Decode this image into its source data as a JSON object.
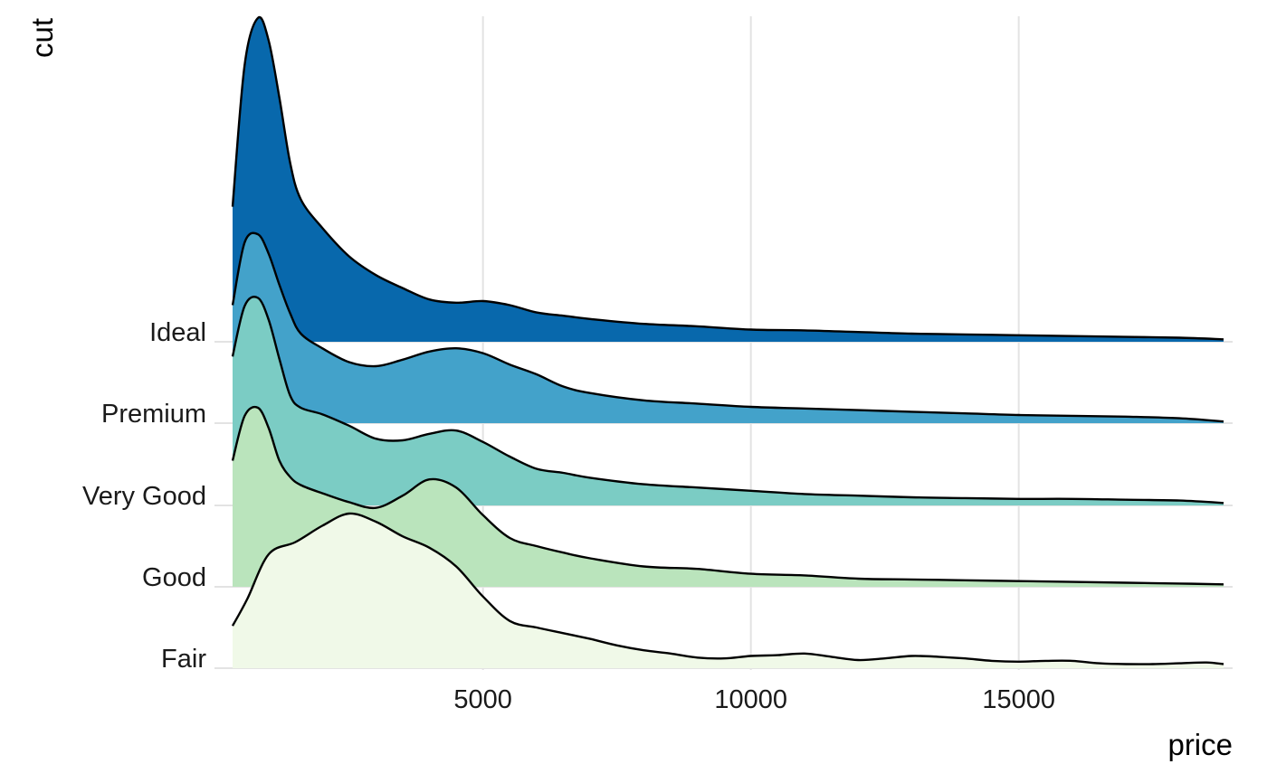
{
  "chart_data": {
    "type": "area",
    "subtype": "ridgeline",
    "xlabel": "price",
    "ylabel": "cut",
    "x_ticks": [
      5000,
      10000,
      15000
    ],
    "xlim": [
      326,
      18823
    ],
    "categories": [
      "Fair",
      "Good",
      "Very Good",
      "Premium",
      "Ideal"
    ],
    "grid": true,
    "series": [
      {
        "name": "Ideal",
        "color": "#0868ac",
        "points": [
          [
            326,
            1.66
          ],
          [
            550,
            3.4
          ],
          [
            800,
            3.98
          ],
          [
            1000,
            3.7
          ],
          [
            1200,
            3.0
          ],
          [
            1400,
            2.2
          ],
          [
            1600,
            1.75
          ],
          [
            2000,
            1.4
          ],
          [
            2500,
            1.05
          ],
          [
            3000,
            0.82
          ],
          [
            3500,
            0.66
          ],
          [
            4000,
            0.52
          ],
          [
            4500,
            0.48
          ],
          [
            5000,
            0.5
          ],
          [
            5500,
            0.45
          ],
          [
            6000,
            0.36
          ],
          [
            6500,
            0.32
          ],
          [
            7000,
            0.28
          ],
          [
            8000,
            0.22
          ],
          [
            9000,
            0.19
          ],
          [
            10000,
            0.15
          ],
          [
            11000,
            0.14
          ],
          [
            12000,
            0.12
          ],
          [
            13000,
            0.1
          ],
          [
            14000,
            0.09
          ],
          [
            15000,
            0.08
          ],
          [
            16000,
            0.07
          ],
          [
            17000,
            0.06
          ],
          [
            18000,
            0.05
          ],
          [
            18823,
            0.03
          ]
        ]
      },
      {
        "name": "Premium",
        "color": "#43a2ca",
        "points": [
          [
            326,
            1.45
          ],
          [
            550,
            2.22
          ],
          [
            800,
            2.32
          ],
          [
            1000,
            2.08
          ],
          [
            1200,
            1.7
          ],
          [
            1400,
            1.35
          ],
          [
            1600,
            1.1
          ],
          [
            2000,
            0.92
          ],
          [
            2500,
            0.75
          ],
          [
            3000,
            0.7
          ],
          [
            3500,
            0.78
          ],
          [
            4000,
            0.88
          ],
          [
            4500,
            0.92
          ],
          [
            5000,
            0.86
          ],
          [
            5500,
            0.72
          ],
          [
            6000,
            0.6
          ],
          [
            6500,
            0.45
          ],
          [
            7000,
            0.37
          ],
          [
            8000,
            0.28
          ],
          [
            9000,
            0.24
          ],
          [
            10000,
            0.2
          ],
          [
            11000,
            0.18
          ],
          [
            12000,
            0.16
          ],
          [
            13000,
            0.14
          ],
          [
            14000,
            0.12
          ],
          [
            15000,
            0.1
          ],
          [
            16000,
            0.09
          ],
          [
            17000,
            0.08
          ],
          [
            18000,
            0.06
          ],
          [
            18823,
            0.02
          ]
        ]
      },
      {
        "name": "Very Good",
        "color": "#7bccc4",
        "points": [
          [
            326,
            1.83
          ],
          [
            550,
            2.45
          ],
          [
            800,
            2.55
          ],
          [
            1000,
            2.28
          ],
          [
            1200,
            1.8
          ],
          [
            1400,
            1.35
          ],
          [
            1600,
            1.2
          ],
          [
            2000,
            1.12
          ],
          [
            2500,
            0.98
          ],
          [
            3000,
            0.82
          ],
          [
            3500,
            0.8
          ],
          [
            4000,
            0.88
          ],
          [
            4500,
            0.92
          ],
          [
            5000,
            0.78
          ],
          [
            5500,
            0.6
          ],
          [
            6000,
            0.45
          ],
          [
            6500,
            0.4
          ],
          [
            7000,
            0.34
          ],
          [
            8000,
            0.26
          ],
          [
            9000,
            0.22
          ],
          [
            10000,
            0.18
          ],
          [
            11000,
            0.14
          ],
          [
            12000,
            0.12
          ],
          [
            13000,
            0.1
          ],
          [
            14000,
            0.09
          ],
          [
            15000,
            0.08
          ],
          [
            16000,
            0.08
          ],
          [
            17000,
            0.07
          ],
          [
            18000,
            0.06
          ],
          [
            18823,
            0.03
          ]
        ]
      },
      {
        "name": "Good",
        "color": "#bae4bc",
        "points": [
          [
            326,
            1.55
          ],
          [
            550,
            2.1
          ],
          [
            800,
            2.2
          ],
          [
            1000,
            1.95
          ],
          [
            1200,
            1.55
          ],
          [
            1400,
            1.35
          ],
          [
            1600,
            1.25
          ],
          [
            2000,
            1.15
          ],
          [
            2500,
            1.04
          ],
          [
            3000,
            0.97
          ],
          [
            3500,
            1.12
          ],
          [
            4000,
            1.32
          ],
          [
            4500,
            1.22
          ],
          [
            5000,
            0.88
          ],
          [
            5500,
            0.6
          ],
          [
            6000,
            0.5
          ],
          [
            6500,
            0.42
          ],
          [
            7000,
            0.35
          ],
          [
            8000,
            0.25
          ],
          [
            9000,
            0.22
          ],
          [
            10000,
            0.16
          ],
          [
            11000,
            0.14
          ],
          [
            12000,
            0.1
          ],
          [
            13000,
            0.09
          ],
          [
            14000,
            0.08
          ],
          [
            15000,
            0.07
          ],
          [
            16000,
            0.06
          ],
          [
            17000,
            0.05
          ],
          [
            18000,
            0.04
          ],
          [
            18823,
            0.03
          ]
        ]
      },
      {
        "name": "Fair",
        "color": "#f0f9e8",
        "points": [
          [
            326,
            0.52
          ],
          [
            600,
            0.85
          ],
          [
            1000,
            1.4
          ],
          [
            1500,
            1.55
          ],
          [
            2000,
            1.75
          ],
          [
            2500,
            1.9
          ],
          [
            3000,
            1.8
          ],
          [
            3500,
            1.62
          ],
          [
            4000,
            1.48
          ],
          [
            4500,
            1.25
          ],
          [
            5000,
            0.88
          ],
          [
            5500,
            0.58
          ],
          [
            6000,
            0.5
          ],
          [
            6500,
            0.43
          ],
          [
            7000,
            0.36
          ],
          [
            7500,
            0.28
          ],
          [
            8000,
            0.22
          ],
          [
            8500,
            0.18
          ],
          [
            9000,
            0.13
          ],
          [
            9500,
            0.12
          ],
          [
            10000,
            0.15
          ],
          [
            10500,
            0.16
          ],
          [
            11000,
            0.18
          ],
          [
            11500,
            0.14
          ],
          [
            12000,
            0.1
          ],
          [
            12500,
            0.12
          ],
          [
            13000,
            0.15
          ],
          [
            13500,
            0.14
          ],
          [
            14000,
            0.12
          ],
          [
            14500,
            0.09
          ],
          [
            15000,
            0.08
          ],
          [
            15500,
            0.09
          ],
          [
            16000,
            0.09
          ],
          [
            16500,
            0.06
          ],
          [
            17000,
            0.05
          ],
          [
            17500,
            0.05
          ],
          [
            18000,
            0.06
          ],
          [
            18500,
            0.07
          ],
          [
            18823,
            0.05
          ]
        ]
      }
    ]
  }
}
